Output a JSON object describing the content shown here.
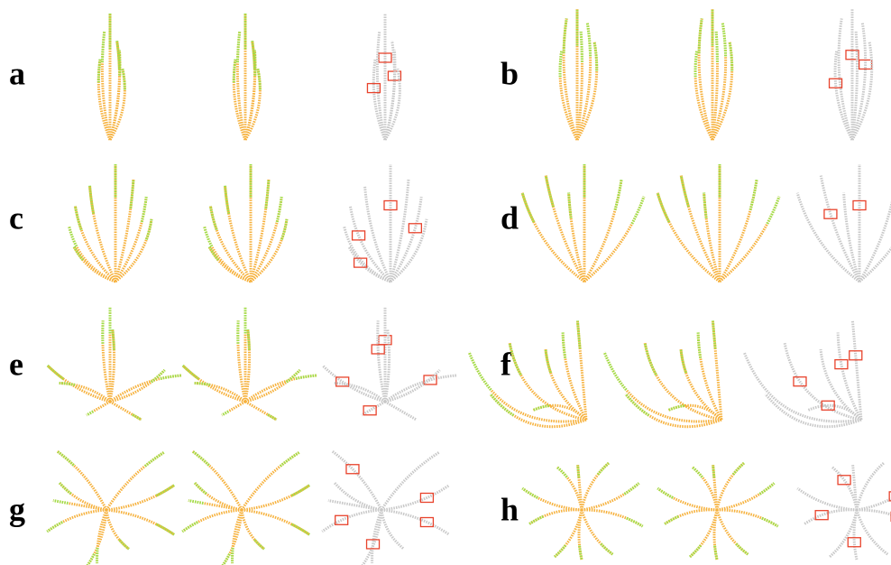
{
  "labels": [
    "a",
    "b",
    "c",
    "d",
    "e",
    "f",
    "g",
    "h"
  ]
}
